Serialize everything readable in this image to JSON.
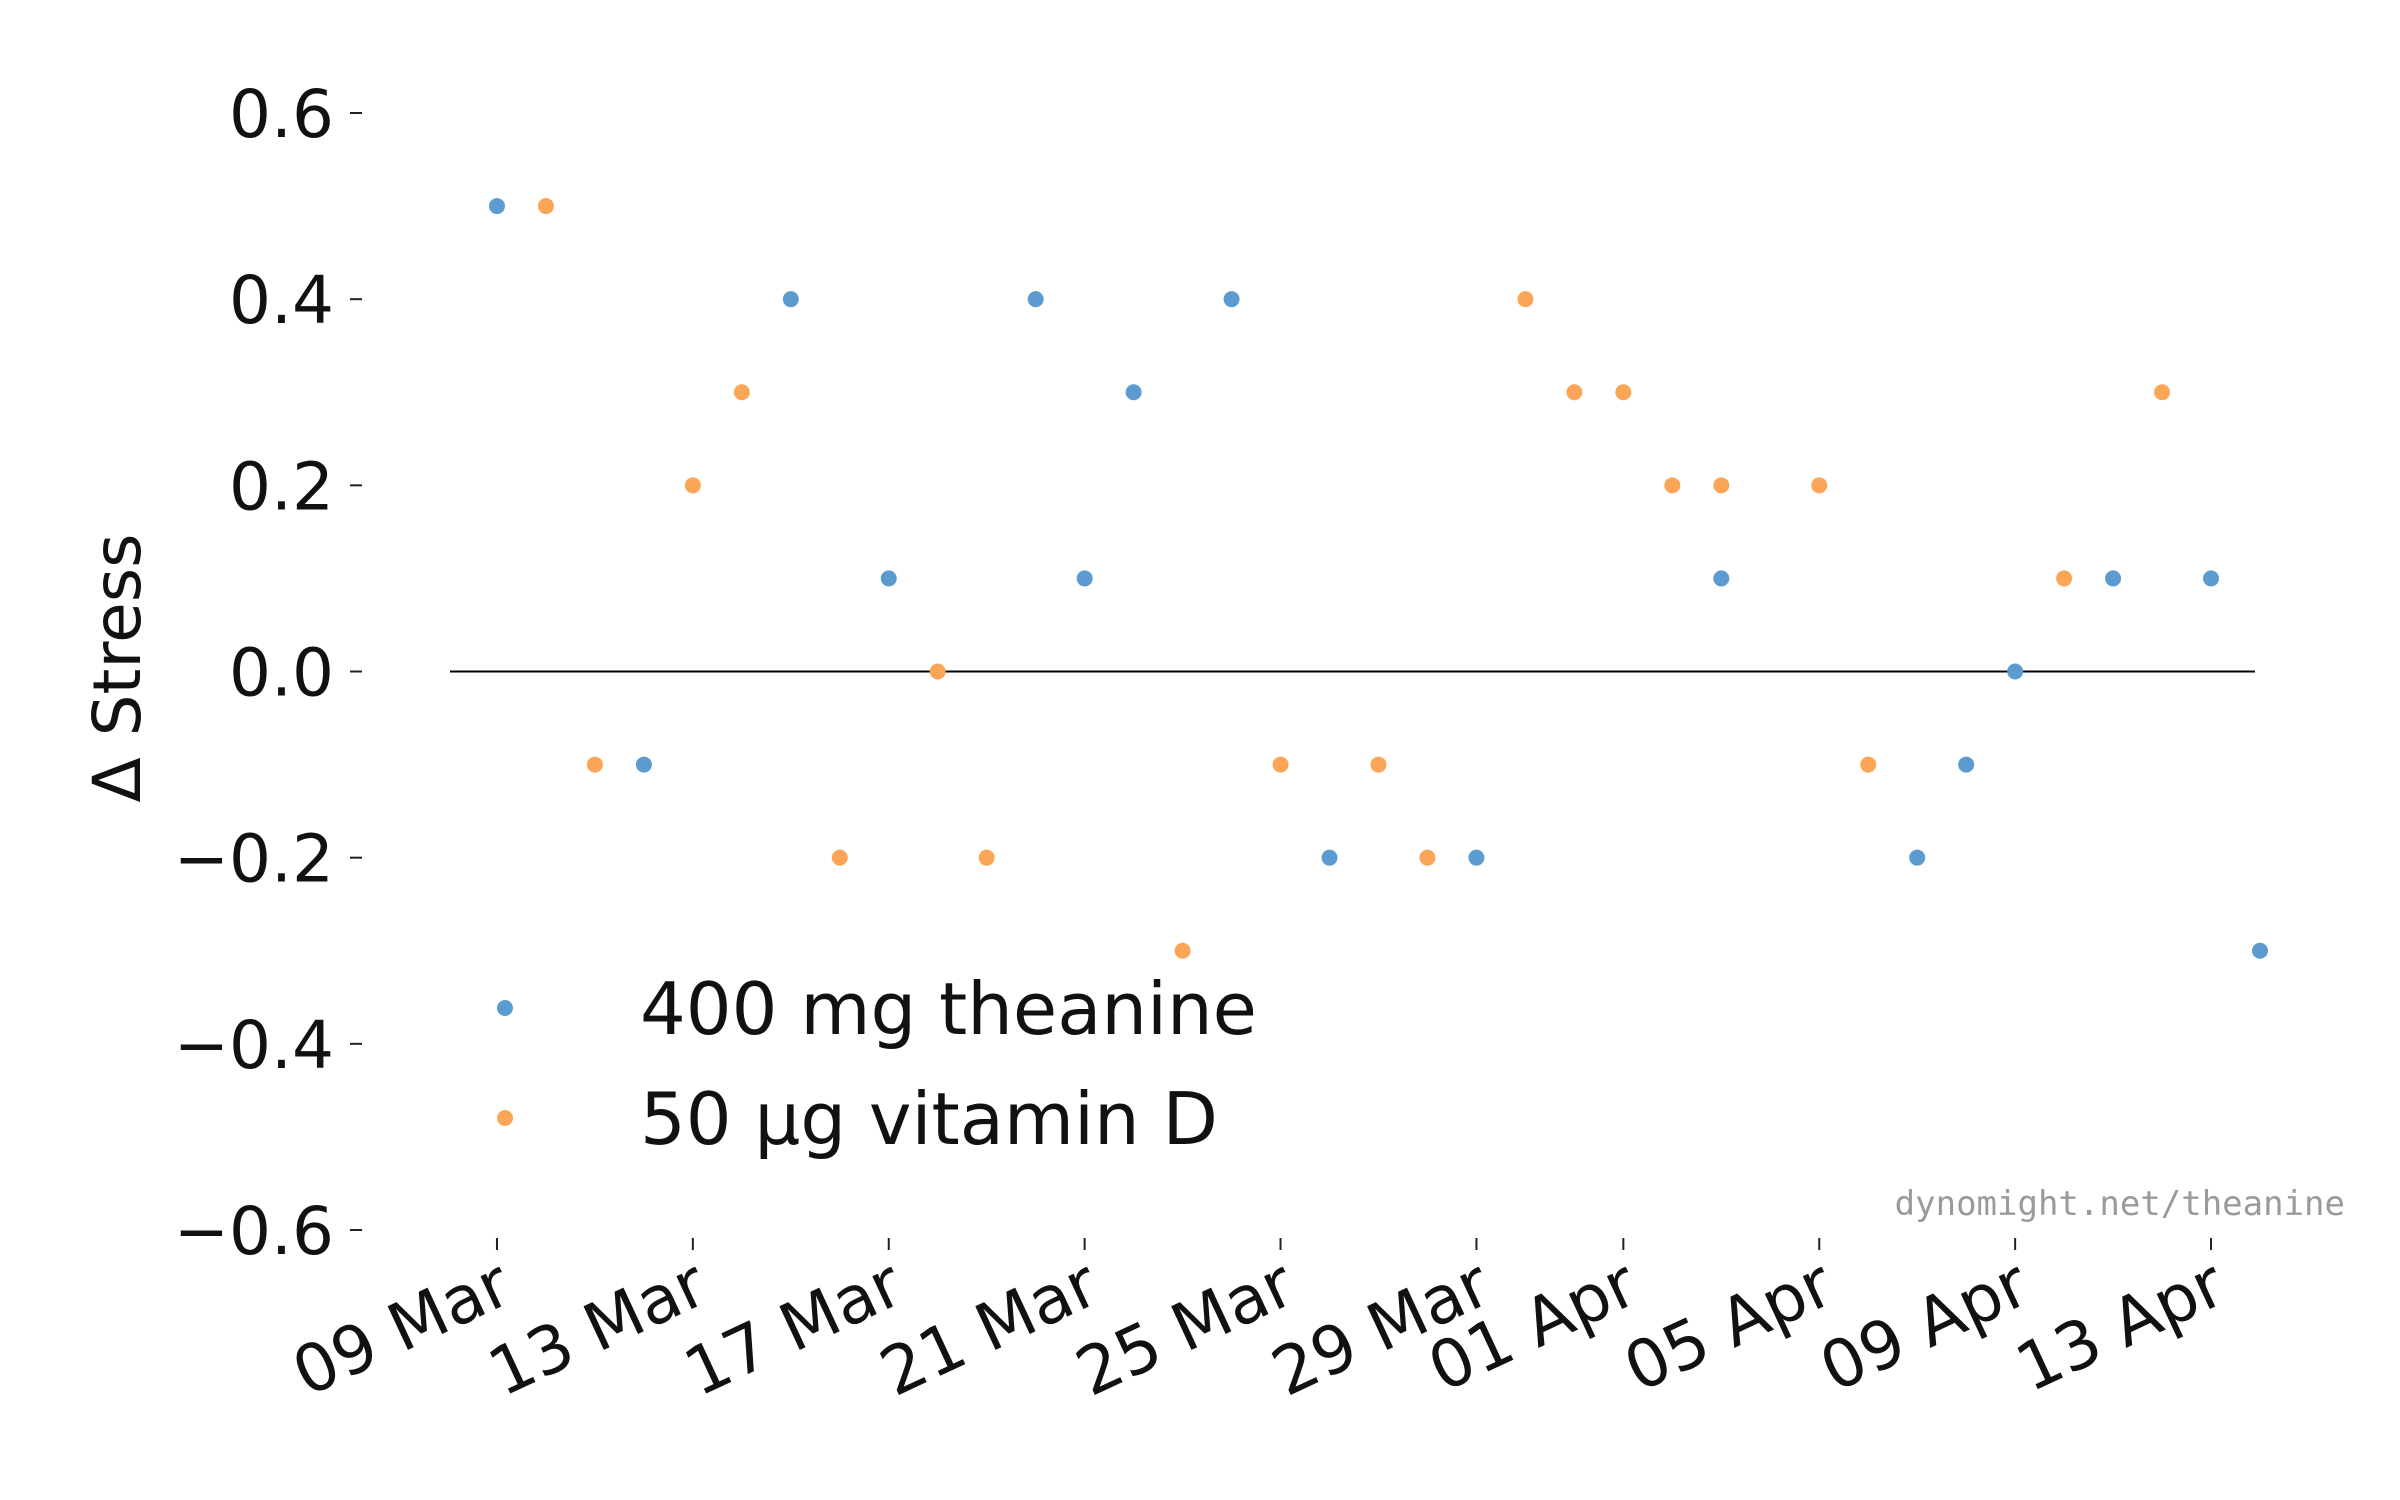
{
  "chart_data": {
    "type": "scatter",
    "title": "",
    "xlabel": "",
    "ylabel": "Δ Stress",
    "ylim": [
      -0.6,
      0.6
    ],
    "yticks": [
      0.6,
      0.4,
      0.2,
      0.0,
      -0.2,
      -0.4,
      -0.6
    ],
    "ytick_labels": [
      "0.6",
      "0.4",
      "0.2",
      "0.0",
      "−0.2",
      "−0.4",
      "−0.6"
    ],
    "xlim": [
      "2020-03-08",
      "2020-04-14"
    ],
    "xticks": [
      "2020-03-09",
      "2020-03-13",
      "2020-03-17",
      "2020-03-21",
      "2020-03-25",
      "2020-03-29",
      "2020-04-01",
      "2020-04-05",
      "2020-04-09",
      "2020-04-13"
    ],
    "xtick_labels": [
      "09 Mar",
      "13 Mar",
      "17 Mar",
      "21 Mar",
      "25 Mar",
      "29 Mar",
      "01 Apr",
      "05 Apr",
      "09 Apr",
      "13 Apr"
    ],
    "reference_line_y": 0.0,
    "grid": false,
    "legend_position": "lower-left",
    "series": [
      {
        "name": "400 mg theanine",
        "color": "#5b9bd0",
        "points": [
          {
            "x": "2020-03-09",
            "y": 0.5
          },
          {
            "x": "2020-03-12",
            "y": -0.1
          },
          {
            "x": "2020-03-15",
            "y": 0.4
          },
          {
            "x": "2020-03-17",
            "y": 0.1
          },
          {
            "x": "2020-03-20",
            "y": 0.4
          },
          {
            "x": "2020-03-21",
            "y": 0.1
          },
          {
            "x": "2020-03-22",
            "y": 0.3
          },
          {
            "x": "2020-03-24",
            "y": 0.4
          },
          {
            "x": "2020-03-26",
            "y": -0.2
          },
          {
            "x": "2020-03-29",
            "y": -0.2
          },
          {
            "x": "2020-04-03",
            "y": 0.1
          },
          {
            "x": "2020-04-07",
            "y": -0.2
          },
          {
            "x": "2020-04-08",
            "y": -0.1
          },
          {
            "x": "2020-04-09",
            "y": 0.0
          },
          {
            "x": "2020-04-11",
            "y": 0.1
          },
          {
            "x": "2020-04-13",
            "y": 0.1
          },
          {
            "x": "2020-04-14",
            "y": -0.3
          }
        ]
      },
      {
        "name": "50 μg vitamin D",
        "color": "#fba557",
        "points": [
          {
            "x": "2020-03-10",
            "y": 0.5
          },
          {
            "x": "2020-03-11",
            "y": -0.1
          },
          {
            "x": "2020-03-13",
            "y": 0.2
          },
          {
            "x": "2020-03-14",
            "y": 0.3
          },
          {
            "x": "2020-03-16",
            "y": -0.2
          },
          {
            "x": "2020-03-18",
            "y": 0.0
          },
          {
            "x": "2020-03-19",
            "y": -0.2
          },
          {
            "x": "2020-03-23",
            "y": -0.3
          },
          {
            "x": "2020-03-25",
            "y": -0.1
          },
          {
            "x": "2020-03-27",
            "y": -0.1
          },
          {
            "x": "2020-03-28",
            "y": -0.2
          },
          {
            "x": "2020-03-30",
            "y": 0.4
          },
          {
            "x": "2020-03-31",
            "y": 0.3
          },
          {
            "x": "2020-04-01",
            "y": 0.3
          },
          {
            "x": "2020-04-02",
            "y": 0.2
          },
          {
            "x": "2020-04-03",
            "y": 0.2
          },
          {
            "x": "2020-04-05",
            "y": 0.2
          },
          {
            "x": "2020-04-06",
            "y": -0.1
          },
          {
            "x": "2020-04-10",
            "y": 0.1
          },
          {
            "x": "2020-04-12",
            "y": 0.3
          }
        ]
      }
    ],
    "watermark": "dynomight.net/theanine"
  }
}
